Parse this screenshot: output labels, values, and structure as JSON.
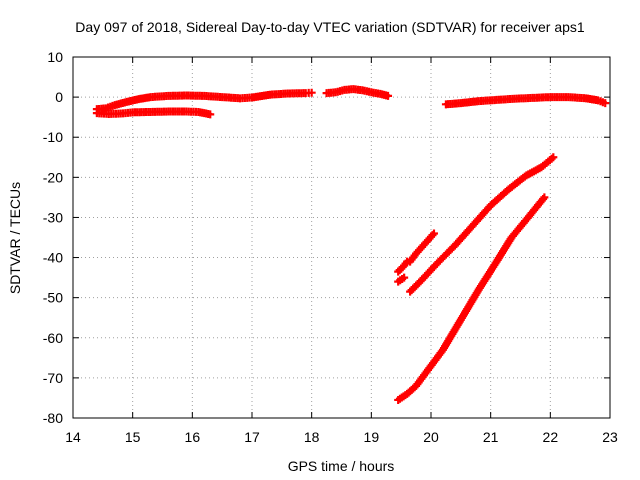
{
  "chart_data": {
    "type": "scatter",
    "title": "Day 097 of 2018, Sidereal Day-to-day VTEC variation (SDTVAR) for receiver aps1",
    "xlabel": "GPS time / hours",
    "ylabel": "SDTVAR / TECUs",
    "xlim": [
      14,
      23
    ],
    "ylim": [
      -80,
      10
    ],
    "x_ticks": [
      14,
      15,
      16,
      17,
      18,
      19,
      20,
      21,
      22,
      23
    ],
    "y_ticks": [
      10,
      0,
      -10,
      -20,
      -30,
      -40,
      -50,
      -60,
      -70,
      -80
    ],
    "grid": true,
    "marker_color": "#ff0000",
    "series": [
      {
        "values": [
          [
            14.4,
            -3.0
          ],
          [
            14.55,
            -2.8
          ],
          [
            14.7,
            -2.0
          ],
          [
            14.9,
            -1.2
          ],
          [
            15.1,
            -0.5
          ],
          [
            15.3,
            0.0
          ],
          [
            15.6,
            0.3
          ],
          [
            15.9,
            0.4
          ],
          [
            16.2,
            0.3
          ],
          [
            16.5,
            0.0
          ],
          [
            16.8,
            -0.3
          ],
          [
            17.0,
            -0.1
          ],
          [
            17.3,
            0.6
          ],
          [
            17.6,
            0.9
          ],
          [
            17.9,
            1.0
          ],
          [
            18.0,
            1.1
          ]
        ]
      },
      {
        "values": [
          [
            14.4,
            -4.0
          ],
          [
            14.6,
            -4.2
          ],
          [
            14.8,
            -4.1
          ],
          [
            15.0,
            -3.8
          ],
          [
            15.3,
            -3.7
          ],
          [
            15.6,
            -3.6
          ],
          [
            15.9,
            -3.6
          ],
          [
            16.1,
            -3.7
          ],
          [
            16.3,
            -4.3
          ]
        ]
      },
      {
        "values": [
          [
            18.25,
            1.0
          ],
          [
            18.4,
            1.2
          ],
          [
            18.55,
            1.8
          ],
          [
            18.7,
            2.0
          ],
          [
            18.85,
            1.7
          ],
          [
            19.0,
            1.2
          ],
          [
            19.15,
            0.8
          ],
          [
            19.28,
            0.3
          ]
        ]
      },
      {
        "values": [
          [
            20.25,
            -1.8
          ],
          [
            20.5,
            -1.5
          ],
          [
            20.8,
            -1.0
          ],
          [
            21.1,
            -0.7
          ],
          [
            21.4,
            -0.4
          ],
          [
            21.7,
            -0.2
          ],
          [
            22.0,
            0.0
          ],
          [
            22.3,
            0.0
          ],
          [
            22.6,
            -0.3
          ],
          [
            22.8,
            -0.8
          ],
          [
            22.92,
            -1.5
          ]
        ]
      },
      {
        "values": [
          [
            19.45,
            -43.5
          ],
          [
            19.55,
            -42.0
          ],
          [
            19.6,
            -41.0
          ]
        ]
      },
      {
        "values": [
          [
            19.45,
            -46.0
          ],
          [
            19.55,
            -45.0
          ]
        ]
      },
      {
        "values": [
          [
            19.65,
            -41.0
          ],
          [
            19.75,
            -39.0
          ],
          [
            19.9,
            -36.5
          ],
          [
            20.05,
            -34.0
          ]
        ]
      },
      {
        "values": [
          [
            19.65,
            -48.5
          ],
          [
            19.85,
            -45.5
          ],
          [
            20.1,
            -41.5
          ],
          [
            20.4,
            -37.0
          ],
          [
            20.7,
            -32.0
          ],
          [
            21.0,
            -27.0
          ],
          [
            21.3,
            -23.0
          ],
          [
            21.6,
            -19.5
          ],
          [
            21.85,
            -17.5
          ],
          [
            22.05,
            -15.0
          ]
        ]
      },
      {
        "values": [
          [
            19.45,
            -75.5
          ],
          [
            19.6,
            -74.0
          ],
          [
            19.75,
            -72.0
          ],
          [
            19.95,
            -68.0
          ],
          [
            20.2,
            -63.0
          ],
          [
            20.5,
            -55.5
          ],
          [
            20.8,
            -48.0
          ],
          [
            21.1,
            -41.0
          ],
          [
            21.35,
            -35.0
          ],
          [
            21.6,
            -30.5
          ],
          [
            21.9,
            -25.0
          ]
        ]
      }
    ]
  }
}
